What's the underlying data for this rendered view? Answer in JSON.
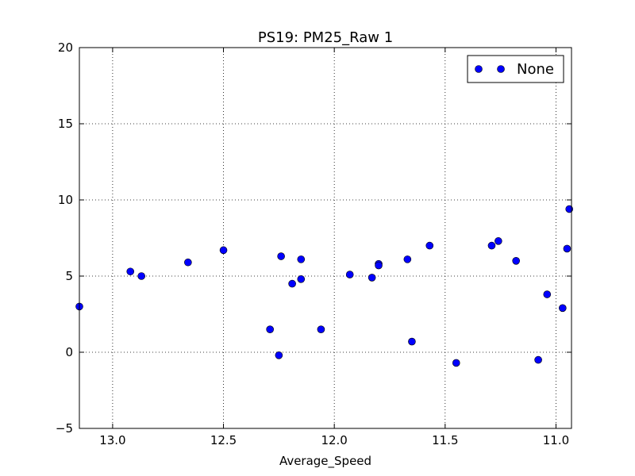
{
  "chart_data": {
    "type": "scatter",
    "title": "PS19: PM25_Raw 1",
    "xlabel": "Average_Speed",
    "ylabel": "",
    "xlim": [
      13.15,
      10.93
    ],
    "ylim": [
      -5,
      20
    ],
    "x_inverted": true,
    "xticks": [
      13.0,
      12.5,
      12.0,
      11.5,
      11.0
    ],
    "xtick_labels": [
      "13.0",
      "12.5",
      "12.0",
      "11.5",
      "11.0"
    ],
    "yticks": [
      -5,
      0,
      5,
      10,
      15,
      20
    ],
    "ytick_labels": [
      "−5",
      "0",
      "5",
      "10",
      "15",
      "20"
    ],
    "grid": true,
    "legend_position": "top-right",
    "marker_color": "#0000ff",
    "series": [
      {
        "name": "None",
        "points": [
          {
            "x": 13.15,
            "y": 3.0
          },
          {
            "x": 12.92,
            "y": 5.3
          },
          {
            "x": 12.87,
            "y": 5.0
          },
          {
            "x": 12.66,
            "y": 5.9
          },
          {
            "x": 12.5,
            "y": 6.7
          },
          {
            "x": 12.29,
            "y": 1.5
          },
          {
            "x": 12.25,
            "y": -0.2
          },
          {
            "x": 12.24,
            "y": 6.3
          },
          {
            "x": 12.19,
            "y": 4.5
          },
          {
            "x": 12.15,
            "y": 6.1
          },
          {
            "x": 12.15,
            "y": 4.8
          },
          {
            "x": 12.06,
            "y": 1.5
          },
          {
            "x": 11.93,
            "y": 5.1
          },
          {
            "x": 11.83,
            "y": 4.9
          },
          {
            "x": 11.8,
            "y": 5.8
          },
          {
            "x": 11.8,
            "y": 5.7
          },
          {
            "x": 11.67,
            "y": 6.1
          },
          {
            "x": 11.65,
            "y": 0.7
          },
          {
            "x": 11.57,
            "y": 7.0
          },
          {
            "x": 11.45,
            "y": -0.7
          },
          {
            "x": 11.29,
            "y": 7.0
          },
          {
            "x": 11.26,
            "y": 7.3
          },
          {
            "x": 11.18,
            "y": 6.0
          },
          {
            "x": 11.08,
            "y": -0.5
          },
          {
            "x": 11.04,
            "y": 3.8
          },
          {
            "x": 10.97,
            "y": 2.9
          },
          {
            "x": 10.95,
            "y": 6.8
          },
          {
            "x": 10.94,
            "y": 9.4
          }
        ]
      }
    ]
  }
}
